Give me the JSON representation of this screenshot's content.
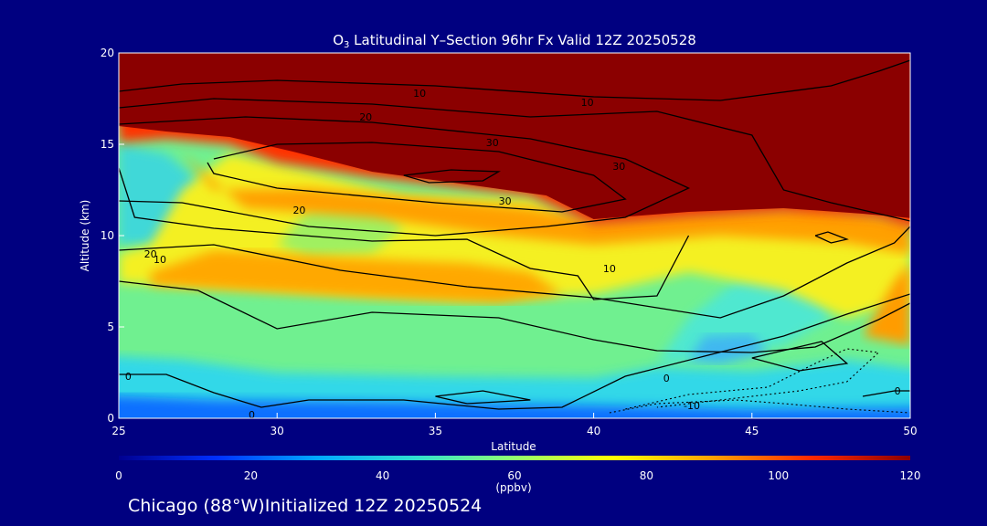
{
  "title": {
    "species_main": "O",
    "species_sub": "3",
    "rest": " Latitudinal Y–Section 96hr  Fx Valid 12Z 20250528"
  },
  "footer": "Chicago (88°W)Initialized 12Z 20250524",
  "chart_data": {
    "type": "heatmap",
    "xlabel": "Latitude",
    "ylabel": "Altitude (km)",
    "xlim": [
      25,
      50
    ],
    "ylim": [
      0,
      20
    ],
    "x_ticks": [
      25,
      30,
      35,
      40,
      45,
      50
    ],
    "y_ticks": [
      0,
      5,
      10,
      15,
      20
    ],
    "colorbar": {
      "units": "(ppbv)",
      "min": 0,
      "max": 120,
      "ticks": [
        0,
        20,
        40,
        60,
        80,
        100,
        120
      ],
      "colors": [
        "#000090",
        "#0030ff",
        "#00a8ff",
        "#30e0d0",
        "#90ff70",
        "#ffff00",
        "#ffa000",
        "#ff2800",
        "#8b0000"
      ]
    },
    "contour_labels": [
      "10",
      "10",
      "20",
      "30",
      "30",
      "30",
      "20",
      "10",
      "20",
      "10",
      "0",
      "0",
      "0",
      "0",
      "-10"
    ]
  }
}
